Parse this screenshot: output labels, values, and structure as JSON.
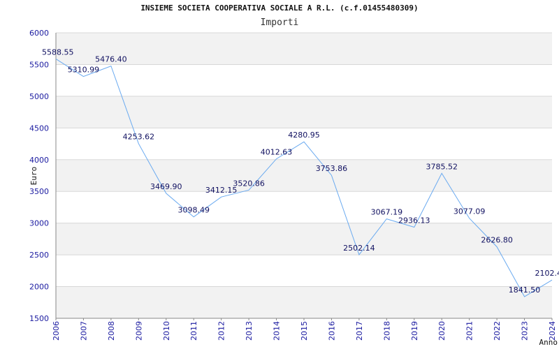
{
  "chart_data": {
    "type": "line",
    "title": "INSIEME SOCIETA COOPERATIVA SOCIALE A R.L. (c.f.01455480309)",
    "subtitle": "Importi",
    "xlabel": "Anno",
    "ylabel": "Euro",
    "ylim": [
      1500,
      6000
    ],
    "yticks": [
      "1500",
      "2000",
      "2500",
      "3000",
      "3500",
      "4000",
      "4500",
      "5000",
      "5500",
      "6000"
    ],
    "categories": [
      "2006",
      "2007",
      "2008",
      "2009",
      "2010",
      "2011",
      "2012",
      "2013",
      "2014",
      "2015",
      "2016",
      "2017",
      "2018",
      "2019",
      "2020",
      "2021",
      "2022",
      "2023",
      "2024"
    ],
    "values": [
      5588.55,
      5310.99,
      5476.4,
      4253.62,
      3469.9,
      3098.49,
      3412.15,
      3520.86,
      4012.63,
      4280.95,
      3753.86,
      2502.14,
      3067.19,
      2936.13,
      3785.52,
      3077.09,
      2626.8,
      1841.5,
      2102.4
    ],
    "data_labels": [
      "5588.55",
      "5310.99",
      "5476.40",
      "4253.62",
      "3469.90",
      "3098.49",
      "3412.15",
      "3520.86",
      "4012.63",
      "4280.95",
      "3753.86",
      "2502.14",
      "3067.19",
      "2936.13",
      "3785.52",
      "3077.09",
      "2626.80",
      "1841.50",
      "2102.4"
    ],
    "line_color": "#6aaaf0",
    "band_color": "#f2f2f2",
    "grid": true
  }
}
